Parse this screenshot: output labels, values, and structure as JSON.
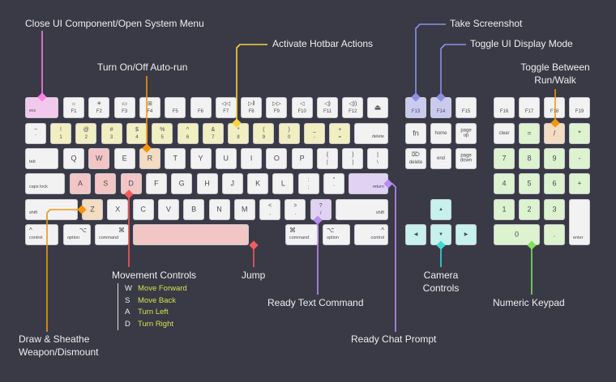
{
  "colors": {
    "background": "#393a46",
    "key_default": "#f2f2f2",
    "pink": "#f3c8ed",
    "yellow": "#f1efc1",
    "red": "#f3c6c6",
    "orange": "#f3dcc1",
    "purple": "#e1d2f4",
    "blue": "#c9caee",
    "cyan": "#c6f1ed",
    "green": "#ddf3d0",
    "legend_value": "#d7e04a"
  },
  "line_colors": {
    "pink": "#ff7fe2",
    "orange": "#f29410",
    "yellow": "#f6d43c",
    "red": "#f35c5c",
    "purple": "#b98cf5",
    "blue": "#8b91e0",
    "cyan": "#40d8d0",
    "green": "#80e05a"
  },
  "main_rows": [
    [
      {
        "bl": "esc",
        "c": "pink"
      },
      {
        "t": "☼",
        "b": "F1"
      },
      {
        "t": "☀",
        "b": "F2"
      },
      {
        "t": "▭",
        "b": "F3"
      },
      {
        "t": "⊞",
        "b": "F4"
      },
      {
        "b": "F5"
      },
      {
        "b": "F6"
      },
      {
        "t": "◁◁",
        "b": "F7"
      },
      {
        "t": "▷‖",
        "b": "F8"
      },
      {
        "t": "▷▷",
        "b": "F9"
      },
      {
        "t": "◁",
        "b": "F10"
      },
      {
        "t": "◁)",
        "b": "F11"
      },
      {
        "t": "◁))",
        "b": "F12"
      },
      {
        "m": "⏏"
      }
    ],
    [
      {
        "t": "~",
        "b": "`"
      },
      {
        "t": "!",
        "b": "1",
        "c": "yellow"
      },
      {
        "t": "@",
        "b": "2",
        "c": "yellow"
      },
      {
        "t": "#",
        "b": "3",
        "c": "yellow"
      },
      {
        "t": "$",
        "b": "4",
        "c": "yellow"
      },
      {
        "t": "%",
        "b": "5",
        "c": "yellow"
      },
      {
        "t": "^",
        "b": "6",
        "c": "yellow"
      },
      {
        "t": "&",
        "b": "7",
        "c": "yellow"
      },
      {
        "t": "*",
        "b": "8",
        "c": "yellow"
      },
      {
        "t": "(",
        "b": "9",
        "c": "yellow"
      },
      {
        "t": ")",
        "b": "0",
        "c": "yellow"
      },
      {
        "t": "_",
        "b": "-",
        "c": "yellow"
      },
      {
        "t": "+",
        "b": "=",
        "c": "yellow"
      },
      {
        "br": "delete"
      }
    ],
    [
      {
        "bl": "tab"
      },
      {
        "m": "Q"
      },
      {
        "m": "W",
        "c": "red"
      },
      {
        "m": "E"
      },
      {
        "m": "R",
        "c": "orange"
      },
      {
        "m": "T"
      },
      {
        "m": "Y"
      },
      {
        "m": "U"
      },
      {
        "m": "I"
      },
      {
        "m": "O"
      },
      {
        "m": "P"
      },
      {
        "t": "{",
        "b": "["
      },
      {
        "t": "}",
        "b": "]"
      },
      {
        "t": "|",
        "b": "\\"
      }
    ],
    [
      {
        "bl": "caps lock"
      },
      {
        "m": "A",
        "c": "red"
      },
      {
        "m": "S",
        "c": "red"
      },
      {
        "m": "D",
        "c": "red"
      },
      {
        "m": "F"
      },
      {
        "m": "G"
      },
      {
        "m": "H"
      },
      {
        "m": "J"
      },
      {
        "m": "K"
      },
      {
        "m": "L"
      },
      {
        "t": ":",
        "b": ";"
      },
      {
        "t": "\"",
        "b": "'"
      },
      {
        "br": "return",
        "c": "purple"
      }
    ],
    [
      {
        "bl": "shift"
      },
      {
        "m": "Z",
        "c": "orange"
      },
      {
        "m": "X"
      },
      {
        "m": "C"
      },
      {
        "m": "V"
      },
      {
        "m": "B"
      },
      {
        "m": "N"
      },
      {
        "m": "M"
      },
      {
        "t": "<",
        "b": ","
      },
      {
        "t": ">",
        "b": "."
      },
      {
        "t": "?",
        "b": "/",
        "c": "purple"
      },
      {
        "br": "shift"
      }
    ],
    [
      {
        "tl": "^",
        "bl": "control"
      },
      {
        "tr": "⌥",
        "bl": "option"
      },
      {
        "tr": "⌘",
        "bl": "command"
      },
      {
        "c": "red"
      },
      {
        "tl": "⌘",
        "bl": "command"
      },
      {
        "tl": "⌥",
        "bl": "option"
      },
      {
        "tr": "^",
        "br": "control"
      }
    ]
  ],
  "nav_keys": [
    {
      "b": "F13",
      "c": "blue"
    },
    {
      "b": "F14",
      "c": "blue"
    },
    {
      "b": "F15"
    },
    {
      "m": "fn"
    },
    {
      "ms": "home"
    },
    {
      "ms": "page\nup"
    },
    {
      "t": "⌦",
      "b": "delete"
    },
    {
      "ms": "end"
    },
    {
      "ms": "page\ndown"
    },
    {
      "ms": "▲",
      "c": "cyan"
    },
    {
      "ms": "◀",
      "c": "cyan"
    },
    {
      "ms": "▼",
      "c": "cyan"
    },
    {
      "ms": "▶",
      "c": "cyan"
    }
  ],
  "numpad_keys": [
    {
      "b": "F16"
    },
    {
      "b": "F17"
    },
    {
      "b": "F18"
    },
    {
      "b": "F19"
    },
    {
      "ms": "clear"
    },
    {
      "m": "=",
      "c": "green"
    },
    {
      "m": "/",
      "c": "orange"
    },
    {
      "m": "*",
      "c": "green"
    },
    {
      "m": "7",
      "c": "green"
    },
    {
      "m": "8",
      "c": "green"
    },
    {
      "m": "9",
      "c": "green"
    },
    {
      "m": "-",
      "c": "green"
    },
    {
      "m": "4",
      "c": "green"
    },
    {
      "m": "5",
      "c": "green"
    },
    {
      "m": "6",
      "c": "green"
    },
    {
      "m": "+",
      "c": "green"
    },
    {
      "m": "1",
      "c": "green"
    },
    {
      "m": "2",
      "c": "green"
    },
    {
      "m": "3",
      "c": "green"
    },
    {
      "bl": "enter"
    },
    {
      "m": "0",
      "c": "green"
    },
    {
      "m": ".",
      "c": "green"
    }
  ],
  "annotations": {
    "close_ui": "Close UI Component/Open System Menu",
    "auto_run": "Turn On/Off Auto-run",
    "hotbar": "Activate Hotbar Actions",
    "screenshot": "Take Screenshot",
    "toggle_ui": "Toggle UI Display Mode",
    "run_walk_1": "Toggle Between",
    "run_walk_2": "Run/Walk",
    "movement": "Movement Controls",
    "jump": "Jump",
    "ready_text": "Ready Text Command",
    "camera_1": "Camera",
    "camera_2": "Controls",
    "numeric": "Numeric Keypad",
    "draw_1": "Draw & Sheathe",
    "draw_2": "Weapon/Dismount",
    "chat": "Ready Chat Prompt"
  },
  "movement_legend": [
    {
      "key": "W",
      "action": "Move Forward"
    },
    {
      "key": "S",
      "action": "Move Back"
    },
    {
      "key": "A",
      "action": "Turn Left"
    },
    {
      "key": "D",
      "action": "Turn Right"
    }
  ]
}
